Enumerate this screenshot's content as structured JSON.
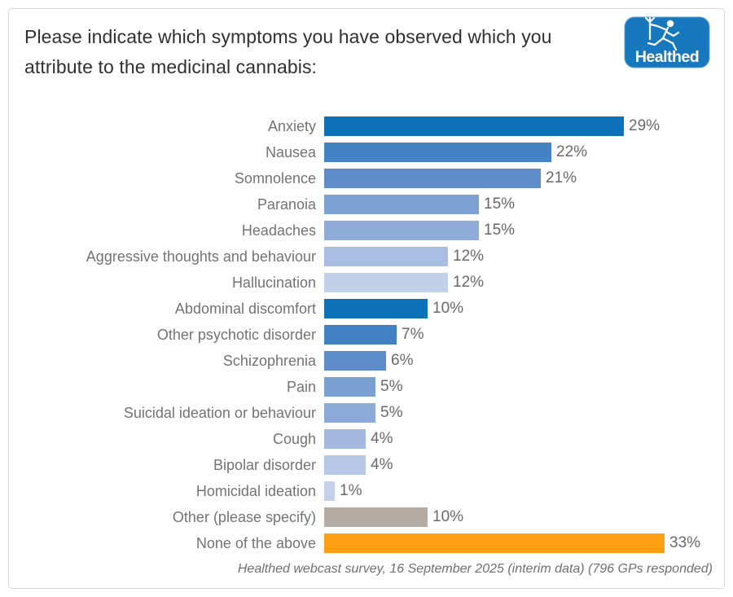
{
  "chart_data": {
    "type": "bar",
    "orientation": "horizontal",
    "title": "Please indicate which symptoms you have observed which you attribute to the medicinal cannabis:",
    "categories": [
      "Anxiety",
      "Nausea",
      "Somnolence",
      "Paranoia",
      "Headaches",
      "Aggressive thoughts and behaviour",
      "Hallucination",
      "Abdominal discomfort",
      "Other psychotic disorder",
      "Schizophrenia",
      "Pain",
      "Suicidal ideation or behaviour",
      "Cough",
      "Bipolar disorder",
      "Homicidal ideation",
      "Other (please specify)",
      "None of the above"
    ],
    "values": [
      29,
      22,
      21,
      15,
      15,
      12,
      12,
      10,
      7,
      6,
      5,
      5,
      4,
      4,
      1,
      10,
      33
    ],
    "value_labels": [
      "29%",
      "22%",
      "21%",
      "15%",
      "15%",
      "12%",
      "12%",
      "10%",
      "7%",
      "6%",
      "5%",
      "5%",
      "4%",
      "4%",
      "1%",
      "10%",
      "33%"
    ],
    "bar_colors": [
      "#0B72B9",
      "#4484C5",
      "#5E8DCA",
      "#7EA1D3",
      "#8FACD9",
      "#A9BCE1",
      "#C3D0EA",
      "#0B72B9",
      "#4181C4",
      "#5C8CC9",
      "#7BA0D2",
      "#8BAAD7",
      "#A3B9DF",
      "#B7C7E6",
      "#C5D1EB",
      "#B3ABA4",
      "#FF9D13"
    ],
    "xlim": [
      0,
      38
    ],
    "grid": false,
    "legend": "none",
    "value_suffix": "%",
    "caption": "Healthed webcast survey, 16 September 2025 (interim data) (796 GPs responded)"
  },
  "logo": {
    "text": "Healthed",
    "bg_color": "#1878BE"
  }
}
